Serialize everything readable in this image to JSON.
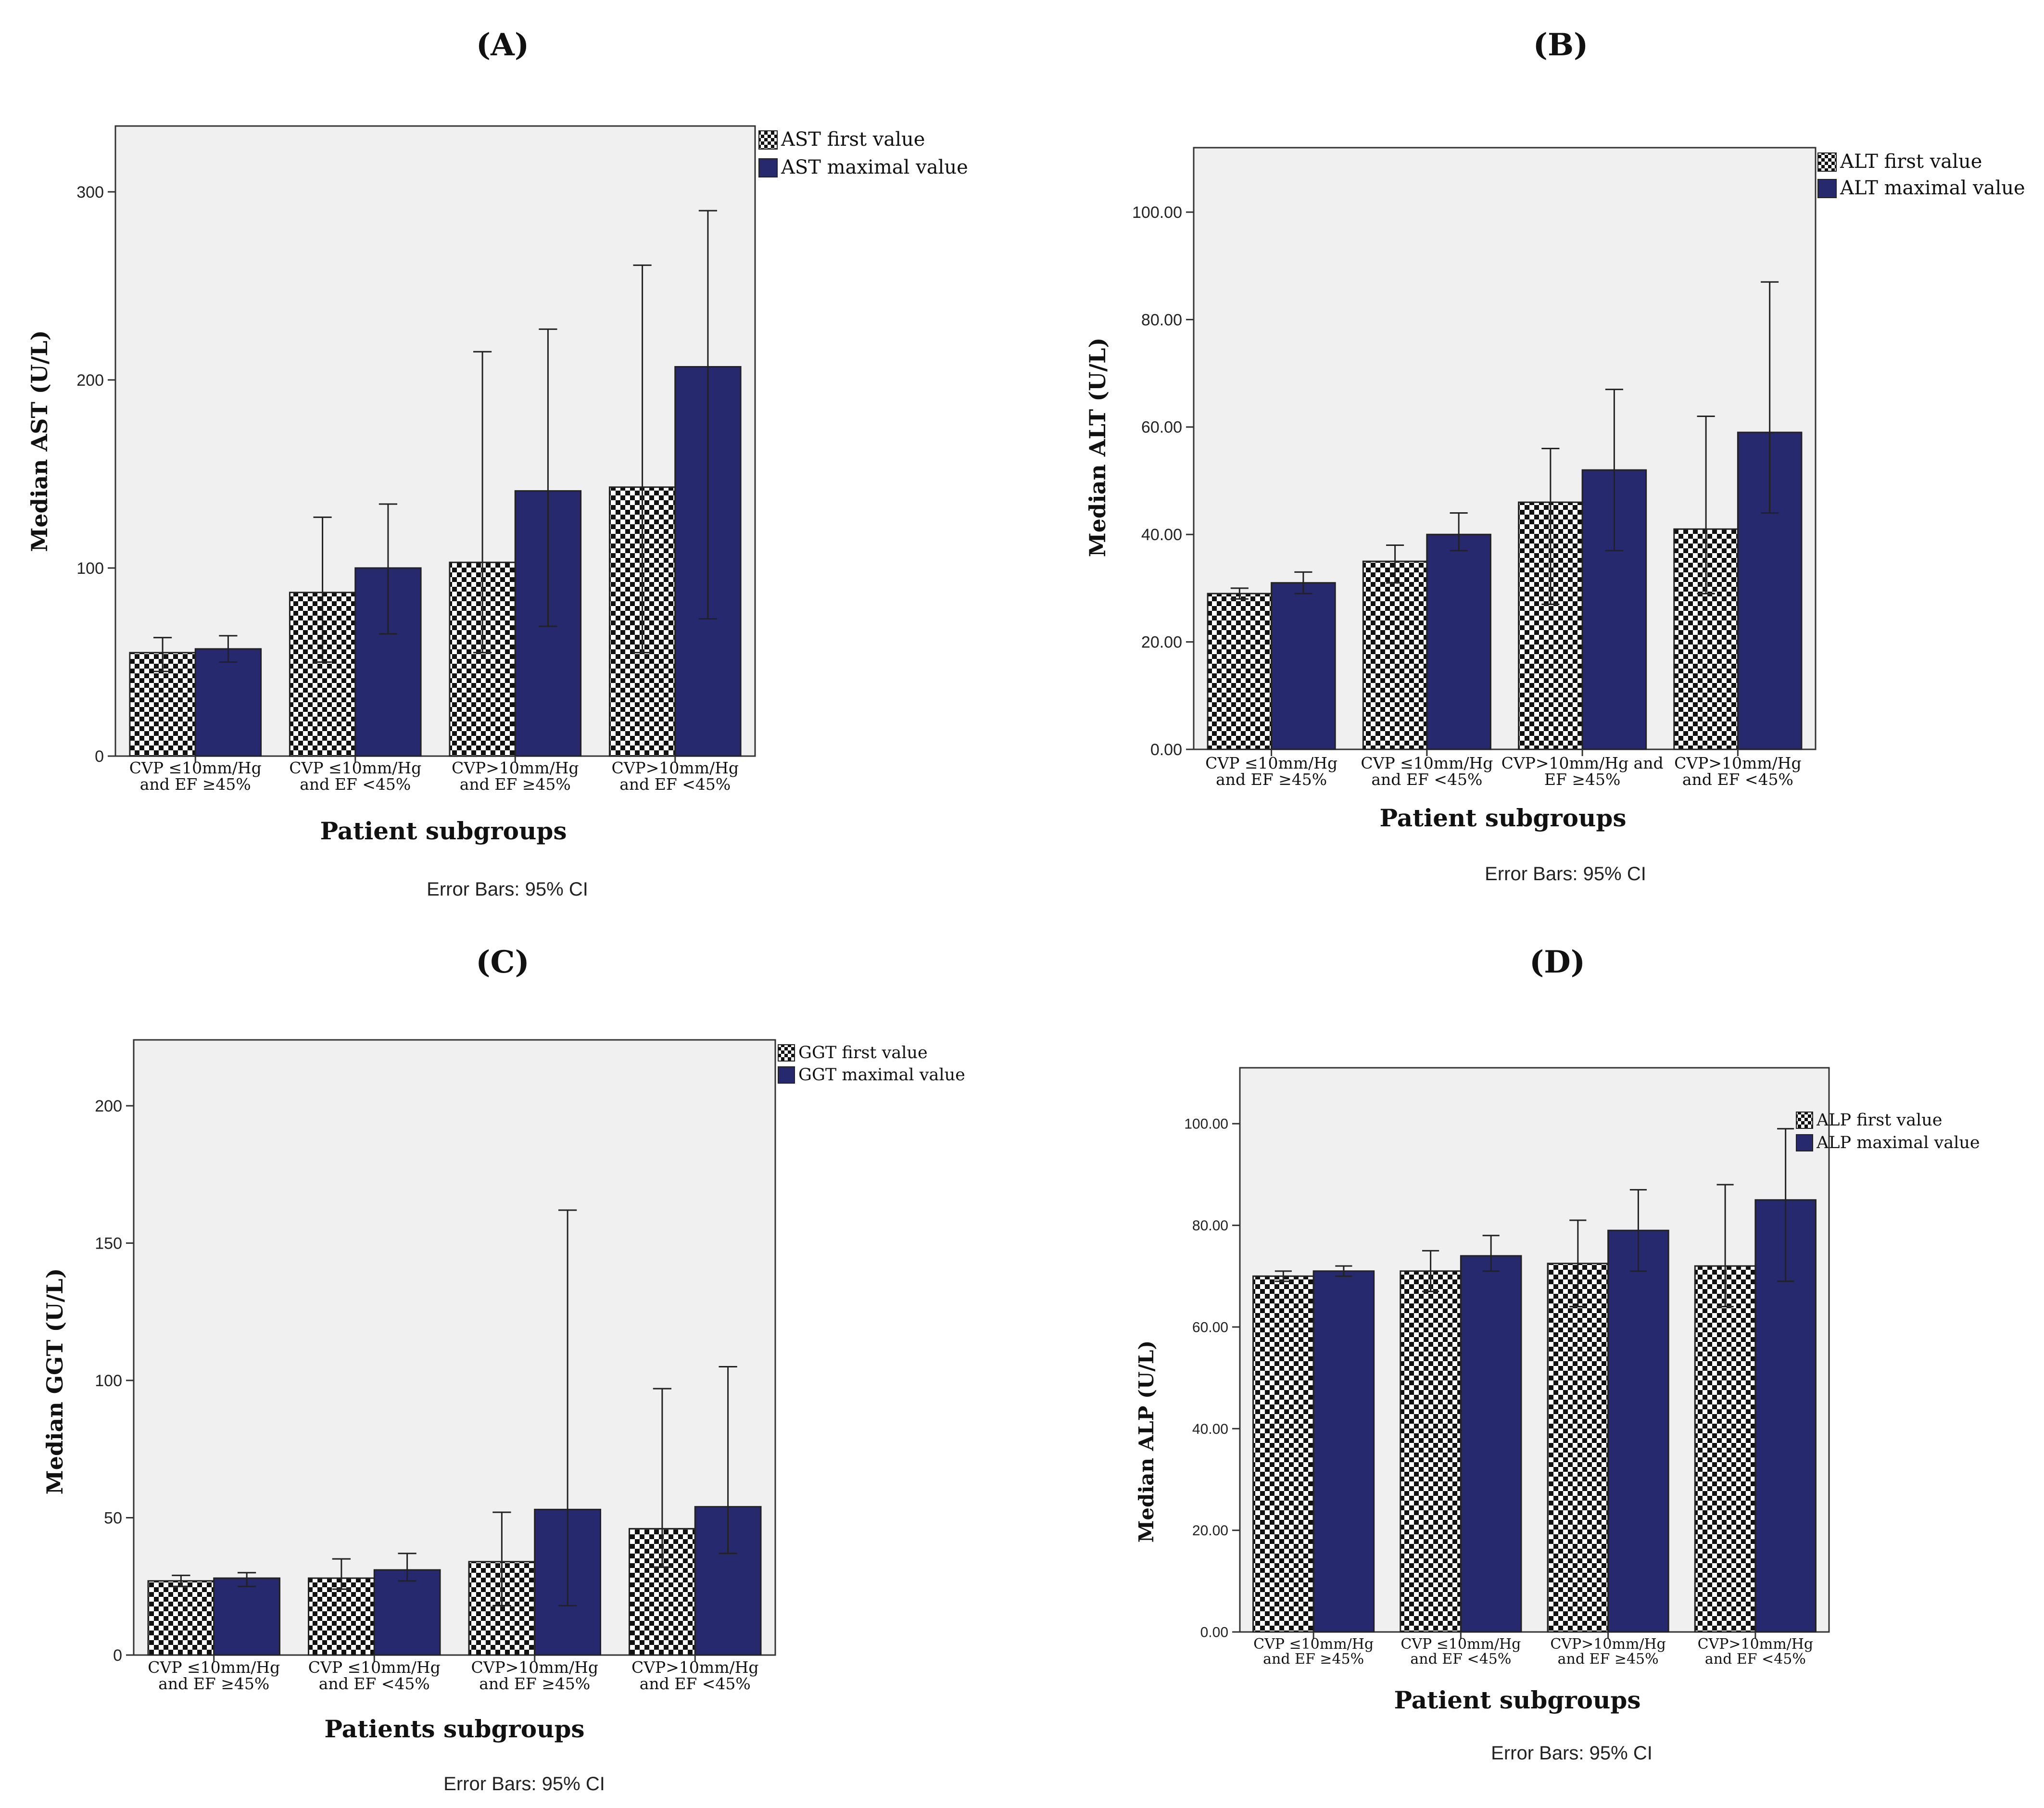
{
  "chart_data": [
    {
      "panel_label": "(A)",
      "type": "bar",
      "ylabel": "Median AST (U/L)",
      "xlabel": "Patient subgroups",
      "footnote": "Error Bars: 95% CI",
      "ylim": [
        0,
        335
      ],
      "yticks": [
        "0",
        "100",
        "200",
        "300"
      ],
      "ytick_values": [
        0,
        100,
        200,
        300
      ],
      "categories": [
        [
          "CVP ≤10mm/Hg",
          "and  EF ≥45%"
        ],
        [
          "CVP ≤10mm/Hg",
          "and EF <45%"
        ],
        [
          "CVP>10mm/Hg",
          "and  EF ≥45%"
        ],
        [
          "CVP>10mm/Hg",
          "and EF <45%"
        ]
      ],
      "legend_position": "top-right",
      "series": [
        {
          "name": "AST first value",
          "pattern": "checker",
          "values": [
            55,
            87,
            103,
            143
          ],
          "ci_low": [
            45,
            50,
            55,
            55
          ],
          "ci_high": [
            63,
            127,
            215,
            261
          ]
        },
        {
          "name": "AST maximal value",
          "color": "#27296e",
          "values": [
            57,
            100,
            141,
            207
          ],
          "ci_low": [
            50,
            65,
            69,
            73
          ],
          "ci_high": [
            64,
            134,
            227,
            290
          ]
        }
      ]
    },
    {
      "panel_label": "(B)",
      "type": "bar",
      "ylabel": "Median ALT (U/L)",
      "xlabel": "Patient subgroups",
      "footnote": "Error Bars: 95% CI",
      "ylim": [
        0,
        112
      ],
      "yticks": [
        "0.00",
        "20.00",
        "40.00",
        "60.00",
        "80.00",
        "100.00"
      ],
      "ytick_values": [
        0,
        20,
        40,
        60,
        80,
        100
      ],
      "categories": [
        [
          "CVP  ≤10mm/Hg",
          "and  EF  ≥45%"
        ],
        [
          "CVP  ≤10mm/Hg",
          "and  EF  <45%"
        ],
        [
          "CVP>10mm/Hg and",
          "EF  ≥45%"
        ],
        [
          "CVP>10mm/Hg",
          "and EF <45%"
        ]
      ],
      "legend_position": "top-right",
      "series": [
        {
          "name": "ALT first value",
          "pattern": "checker",
          "values": [
            29,
            35,
            46,
            41
          ],
          "ci_low": [
            28,
            31,
            27,
            29
          ],
          "ci_high": [
            30,
            38,
            56,
            62
          ]
        },
        {
          "name": "ALT maximal value",
          "color": "#27296e",
          "values": [
            31,
            40,
            52,
            59
          ],
          "ci_low": [
            29,
            37,
            37,
            44
          ],
          "ci_high": [
            33,
            44,
            67,
            87
          ]
        }
      ]
    },
    {
      "panel_label": "(C)",
      "type": "bar",
      "ylabel": "Median GGT (U/L)",
      "xlabel": "Patients subgroups",
      "footnote": "Error Bars: 95% CI",
      "ylim": [
        0,
        224
      ],
      "yticks": [
        "0",
        "50",
        "100",
        "150",
        "200"
      ],
      "ytick_values": [
        0,
        50,
        100,
        150,
        200
      ],
      "categories": [
        [
          "CVP ≤10mm/Hg",
          "and EF ≥45%"
        ],
        [
          "CVP ≤10mm/Hg",
          "and  EF <45%"
        ],
        [
          "CVP>10mm/Hg",
          "and  EF ≥45%"
        ],
        [
          "CVP>10mm/Hg",
          "and  EF <45%"
        ]
      ],
      "legend_position": "top-right",
      "series": [
        {
          "name": "GGT first value",
          "pattern": "checker",
          "values": [
            27,
            28,
            34,
            46
          ],
          "ci_low": [
            25,
            24,
            18,
            32
          ],
          "ci_high": [
            29,
            35,
            52,
            97
          ]
        },
        {
          "name": "GGT maximal value",
          "color": "#27296e",
          "values": [
            28,
            31,
            53,
            54
          ],
          "ci_low": [
            25,
            27,
            18,
            37
          ],
          "ci_high": [
            30,
            37,
            162,
            105
          ]
        }
      ]
    },
    {
      "panel_label": "(D)",
      "type": "bar",
      "ylabel": "Median ALP (U/L)",
      "xlabel": "Patient subgroups",
      "footnote": "Error Bars: 95% CI",
      "ylim": [
        0,
        111
      ],
      "yticks": [
        "0.00",
        "20.00",
        "40.00",
        "60.00",
        "80.00",
        "100.00"
      ],
      "ytick_values": [
        0,
        20,
        40,
        60,
        80,
        100
      ],
      "categories": [
        [
          "CVP ≤10mm/Hg",
          "and  EF ≥45%"
        ],
        [
          "CVP ≤10mm/Hg",
          "and EF <45%"
        ],
        [
          "CVP>10mm/Hg",
          "and EF ≥45%"
        ],
        [
          "CVP>10mm/Hg",
          "and EF <45%"
        ]
      ],
      "legend_position": "top-right",
      "series": [
        {
          "name": "ALP first value",
          "pattern": "checker",
          "values": [
            70,
            71,
            72.5,
            72
          ],
          "ci_low": [
            69,
            67,
            64,
            64
          ],
          "ci_high": [
            71,
            75,
            81,
            88
          ]
        },
        {
          "name": "ALP maximal value",
          "color": "#27296e",
          "values": [
            71,
            74,
            79,
            85
          ],
          "ci_low": [
            70,
            71,
            71,
            69
          ],
          "ci_high": [
            72,
            78,
            87,
            99
          ]
        }
      ]
    }
  ]
}
